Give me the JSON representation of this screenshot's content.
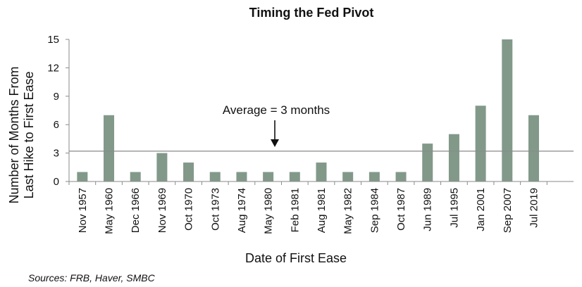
{
  "chart_data": {
    "type": "bar",
    "title": "Timing the Fed Pivot",
    "xlabel": "Date of First Ease",
    "ylabel_lines": [
      "Number of Months From",
      "Last Hike to First Ease"
    ],
    "categories": [
      "Nov 1957",
      "May 1960",
      "Dec 1966",
      "Nov 1969",
      "Oct 1970",
      "Oct 1973",
      "Aug 1974",
      "May 1980",
      "Feb 1981",
      "Aug 1981",
      "May 1982",
      "Sep 1984",
      "Oct 1987",
      "Jun 1989",
      "Jul 1995",
      "Jan 2001",
      "Sep 2007",
      "Jul 2019"
    ],
    "values": [
      1,
      7,
      1,
      3,
      2,
      1,
      1,
      1,
      1,
      2,
      1,
      1,
      1,
      4,
      5,
      8,
      15,
      7
    ],
    "ylim": [
      0,
      15
    ],
    "yticks": [
      0,
      3,
      6,
      9,
      12,
      15
    ],
    "average_line": 3.2,
    "annotation": "Average = 3 months",
    "bar_color": "#82998a",
    "grid": false
  },
  "source": "Sources: FRB, Haver, SMBC"
}
